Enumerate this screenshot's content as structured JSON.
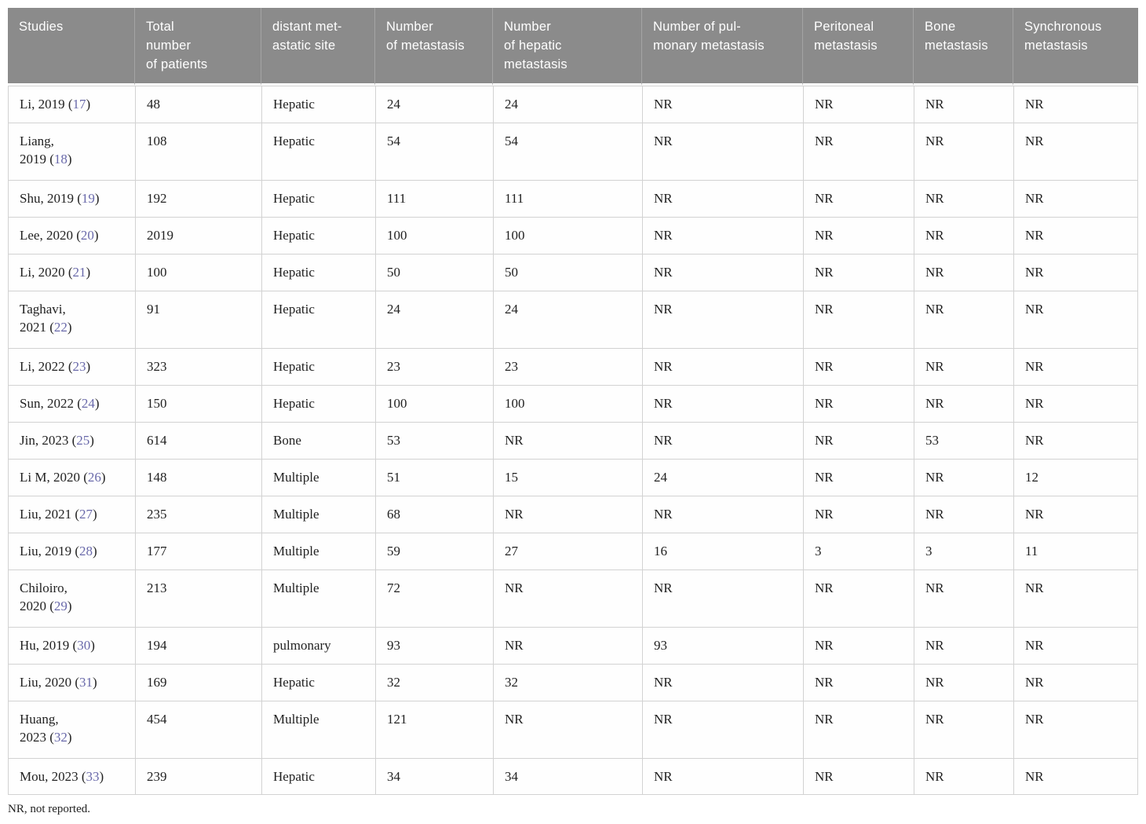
{
  "table": {
    "columns": [
      "Studies",
      "Total\nnumber\nof patients",
      "distant met-\nastatic site",
      "Number\nof metastasis",
      "Number\nof hepatic\nmetastasis",
      "Number of pul-\nmonary metastasis",
      "Peritoneal\nmetastasis",
      "Bone\nmetastasis",
      "Synchronous\nmetastasis"
    ],
    "rows": [
      {
        "study": "Li, 2019",
        "ref": "17",
        "cells": [
          "48",
          "Hepatic",
          "24",
          "24",
          "NR",
          "NR",
          "NR",
          "NR"
        ]
      },
      {
        "study": "Liang,\n2019",
        "ref": "18",
        "cells": [
          "108",
          "Hepatic",
          "54",
          "54",
          "NR",
          "NR",
          "NR",
          "NR"
        ]
      },
      {
        "study": "Shu, 2019",
        "ref": "19",
        "cells": [
          "192",
          "Hepatic",
          "111",
          "111",
          "NR",
          "NR",
          "NR",
          "NR"
        ]
      },
      {
        "study": "Lee, 2020",
        "ref": "20",
        "cells": [
          "2019",
          "Hepatic",
          "100",
          "100",
          "NR",
          "NR",
          "NR",
          "NR"
        ]
      },
      {
        "study": "Li, 2020",
        "ref": "21",
        "cells": [
          "100",
          "Hepatic",
          "50",
          "50",
          "NR",
          "NR",
          "NR",
          "NR"
        ]
      },
      {
        "study": "Taghavi,\n2021",
        "ref": "22",
        "cells": [
          "91",
          "Hepatic",
          "24",
          "24",
          "NR",
          "NR",
          "NR",
          "NR"
        ]
      },
      {
        "study": "Li, 2022",
        "ref": "23",
        "cells": [
          "323",
          "Hepatic",
          "23",
          "23",
          "NR",
          "NR",
          "NR",
          "NR"
        ]
      },
      {
        "study": "Sun, 2022",
        "ref": "24",
        "cells": [
          "150",
          "Hepatic",
          "100",
          "100",
          "NR",
          "NR",
          "NR",
          "NR"
        ]
      },
      {
        "study": "Jin, 2023",
        "ref": "25",
        "cells": [
          "614",
          "Bone",
          "53",
          "NR",
          "NR",
          "NR",
          "53",
          "NR"
        ]
      },
      {
        "study": "Li M, 2020",
        "ref": "26",
        "cells": [
          "148",
          "Multiple",
          "51",
          "15",
          "24",
          "NR",
          "NR",
          "12"
        ]
      },
      {
        "study": "Liu, 2021",
        "ref": "27",
        "cells": [
          "235",
          "Multiple",
          "68",
          "NR",
          "NR",
          "NR",
          "NR",
          "NR"
        ]
      },
      {
        "study": "Liu, 2019",
        "ref": "28",
        "cells": [
          "177",
          "Multiple",
          "59",
          "27",
          "16",
          "3",
          "3",
          "11"
        ]
      },
      {
        "study": "Chiloiro,\n2020",
        "ref": "29",
        "cells": [
          "213",
          "Multiple",
          "72",
          "NR",
          "NR",
          "NR",
          "NR",
          "NR"
        ]
      },
      {
        "study": "Hu, 2019",
        "ref": "30",
        "cells": [
          "194",
          "pulmonary",
          "93",
          "NR",
          "93",
          "NR",
          "NR",
          "NR"
        ]
      },
      {
        "study": "Liu, 2020",
        "ref": "31",
        "cells": [
          "169",
          "Hepatic",
          "32",
          "32",
          "NR",
          "NR",
          "NR",
          "NR"
        ]
      },
      {
        "study": "Huang,\n2023",
        "ref": "32",
        "cells": [
          "454",
          "Multiple",
          "121",
          "NR",
          "NR",
          "NR",
          "NR",
          "NR"
        ]
      },
      {
        "study": "Mou, 2023",
        "ref": "33",
        "cells": [
          "239",
          "Hepatic",
          "34",
          "34",
          "NR",
          "NR",
          "NR",
          "NR"
        ]
      }
    ]
  },
  "footnote": "NR, not reported.",
  "colors": {
    "header_bg": "#8b8b8b",
    "header_text": "#ffffff",
    "citation_link": "#6969aa",
    "cell_border": "#d2d2d2",
    "body_text": "#212121"
  }
}
